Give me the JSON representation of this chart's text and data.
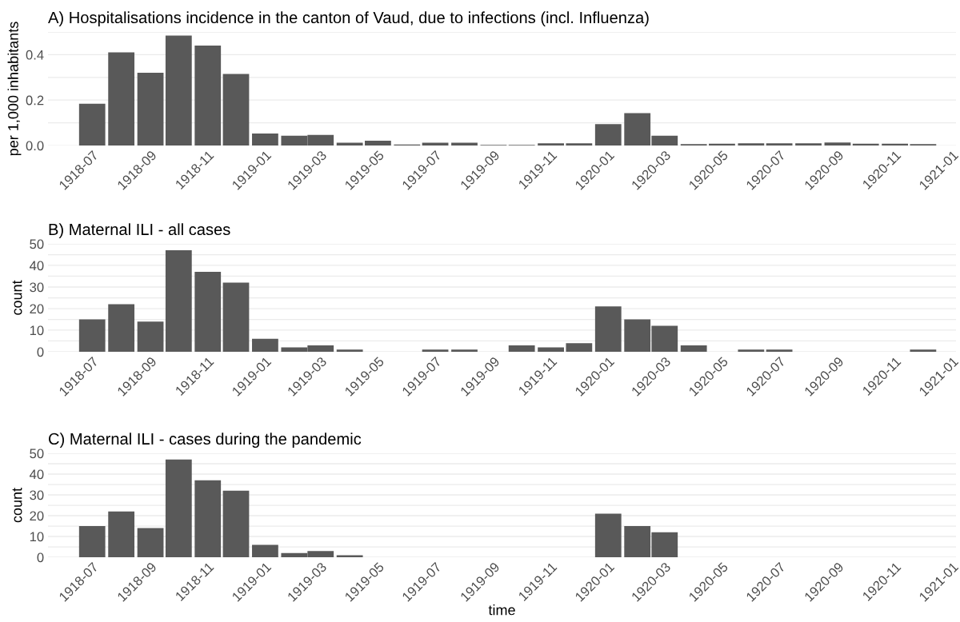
{
  "chart_data": [
    {
      "type": "bar",
      "title": "A) Hospitalisations incidence in the canton of Vaud, due to infections (incl. Influenza)",
      "ylabel": "per 1,000 inhabitants",
      "x": [
        "1918-07",
        "1918-08",
        "1918-09",
        "1918-10",
        "1918-11",
        "1918-12",
        "1919-01",
        "1919-02",
        "1919-03",
        "1919-04",
        "1919-05",
        "1919-06",
        "1919-07",
        "1919-08",
        "1919-09",
        "1919-10",
        "1919-11",
        "1919-12",
        "1920-01",
        "1920-02",
        "1920-03",
        "1920-04",
        "1920-05",
        "1920-06",
        "1920-07",
        "1920-08",
        "1920-09",
        "1920-10",
        "1920-11",
        "1920-12"
      ],
      "values": [
        0.184,
        0.41,
        0.32,
        0.484,
        0.44,
        0.315,
        0.053,
        0.043,
        0.047,
        0.012,
        0.021,
        0.004,
        0.012,
        0.012,
        0.003,
        0.003,
        0.01,
        0.01,
        0.094,
        0.143,
        0.043,
        0.006,
        0.008,
        0.01,
        0.01,
        0.01,
        0.013,
        0.008,
        0.008,
        0.006
      ],
      "color": "#595959",
      "xlim": [
        "1918-05-15",
        "1921-01-05"
      ],
      "xticks": [
        "1918-07",
        "1918-09",
        "1918-11",
        "1919-01",
        "1919-03",
        "1919-05",
        "1919-07",
        "1919-09",
        "1919-11",
        "1920-01",
        "1920-03",
        "1920-05",
        "1920-07",
        "1920-09",
        "1920-11",
        "1921-01"
      ],
      "ylim": [
        0,
        0.5
      ],
      "yticks": [
        {
          "value": 0,
          "label": "0.0"
        },
        {
          "value": 0.1,
          "label": null
        },
        {
          "value": 0.2,
          "label": "0.2"
        },
        {
          "value": 0.3,
          "label": null
        },
        {
          "value": 0.4,
          "label": "0.4"
        },
        {
          "value": 0.5,
          "label": null
        }
      ],
      "grid": "y"
    },
    {
      "type": "bar",
      "title": "B) Maternal ILI - all cases",
      "ylabel": "count",
      "x": [
        "1918-07",
        "1918-08",
        "1918-09",
        "1918-10",
        "1918-11",
        "1918-12",
        "1919-01",
        "1919-02",
        "1919-03",
        "1919-04",
        "1919-05",
        "1919-06",
        "1919-07",
        "1919-08",
        "1919-09",
        "1919-10",
        "1919-11",
        "1919-12",
        "1920-01",
        "1920-02",
        "1920-03",
        "1920-04",
        "1920-05",
        "1920-06",
        "1920-07",
        "1920-08",
        "1920-09",
        "1920-10",
        "1920-11",
        "1920-12"
      ],
      "values": [
        15,
        22,
        14,
        47,
        37,
        32,
        6,
        2,
        3,
        1,
        0,
        0,
        1,
        1,
        0,
        3,
        2,
        4,
        21,
        15,
        12,
        3,
        0,
        1,
        1,
        0,
        0,
        0,
        0,
        1
      ],
      "color": "#595959",
      "xlim": [
        "1918-05-15",
        "1921-01-05"
      ],
      "xticks": [
        "1918-07",
        "1918-09",
        "1918-11",
        "1919-01",
        "1919-03",
        "1919-05",
        "1919-07",
        "1919-09",
        "1919-11",
        "1920-01",
        "1920-03",
        "1920-05",
        "1920-07",
        "1920-09",
        "1920-11",
        "1921-01"
      ],
      "ylim": [
        0,
        50
      ],
      "yticks": [
        0,
        {
          "value": 5,
          "label": null
        },
        10,
        {
          "value": 15,
          "label": null
        },
        20,
        {
          "value": 25,
          "label": null
        },
        30,
        {
          "value": 35,
          "label": null
        },
        40,
        {
          "value": 45,
          "label": null
        },
        50
      ],
      "grid": "y"
    },
    {
      "type": "bar",
      "title": "C) Maternal ILI - cases during the pandemic",
      "ylabel": "count",
      "xlabel": "time",
      "x": [
        "1918-07",
        "1918-08",
        "1918-09",
        "1918-10",
        "1918-11",
        "1918-12",
        "1919-01",
        "1919-02",
        "1919-03",
        "1919-04",
        "1919-05",
        "1919-06",
        "1919-07",
        "1919-08",
        "1919-09",
        "1919-10",
        "1919-11",
        "1919-12",
        "1920-01",
        "1920-02",
        "1920-03",
        "1920-04",
        "1920-05",
        "1920-06",
        "1920-07",
        "1920-08",
        "1920-09",
        "1920-10",
        "1920-11",
        "1920-12"
      ],
      "values": [
        15,
        22,
        14,
        47,
        37,
        32,
        6,
        2,
        3,
        1,
        0,
        0,
        0,
        0,
        0,
        0,
        0,
        0,
        21,
        15,
        12,
        0,
        0,
        0,
        0,
        0,
        0,
        0,
        0,
        0
      ],
      "color": "#595959",
      "xlim": [
        "1918-05-15",
        "1921-01-05"
      ],
      "xticks": [
        "1918-07",
        "1918-09",
        "1918-11",
        "1919-01",
        "1919-03",
        "1919-05",
        "1919-07",
        "1919-09",
        "1919-11",
        "1920-01",
        "1920-03",
        "1920-05",
        "1920-07",
        "1920-09",
        "1920-11",
        "1921-01"
      ],
      "ylim": [
        0,
        50
      ],
      "yticks": [
        0,
        {
          "value": 5,
          "label": null
        },
        10,
        {
          "value": 15,
          "label": null
        },
        20,
        {
          "value": 25,
          "label": null
        },
        30,
        {
          "value": 35,
          "label": null
        },
        40,
        {
          "value": 45,
          "label": null
        },
        50
      ],
      "grid": "y"
    }
  ]
}
